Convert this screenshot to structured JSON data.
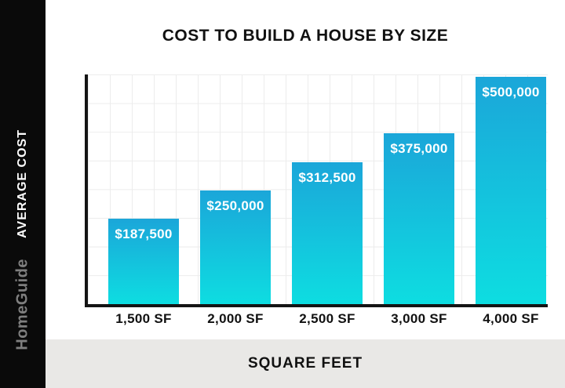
{
  "sidebar": {
    "y_axis_title": "AVERAGE COST",
    "brand": "HomeGuide",
    "background": "#0a0a0a",
    "y_axis_title_color": "#ffffff",
    "brand_color": "#7f7f7f"
  },
  "chart_data": {
    "type": "bar",
    "title": "COST TO BUILD A HOUSE BY SIZE",
    "xlabel": "SQUARE FEET",
    "ylabel": "AVERAGE COST",
    "categories": [
      "1,500 SF",
      "2,000 SF",
      "2,500 SF",
      "3,000 SF",
      "4,000 SF"
    ],
    "values": [
      187500,
      250000,
      312500,
      375000,
      500000
    ],
    "value_labels": [
      "$187,500",
      "$250,000",
      "$312,500",
      "$375,000",
      "$500,000"
    ],
    "ylim": [
      0,
      500000
    ],
    "grid": true,
    "legend": false,
    "bar_gradient_top": "#1ba6d9",
    "bar_gradient_bottom": "#0edde1",
    "grid_color": "#ececec",
    "axis_color": "#141414",
    "strip_background": "#e9e8e6"
  }
}
